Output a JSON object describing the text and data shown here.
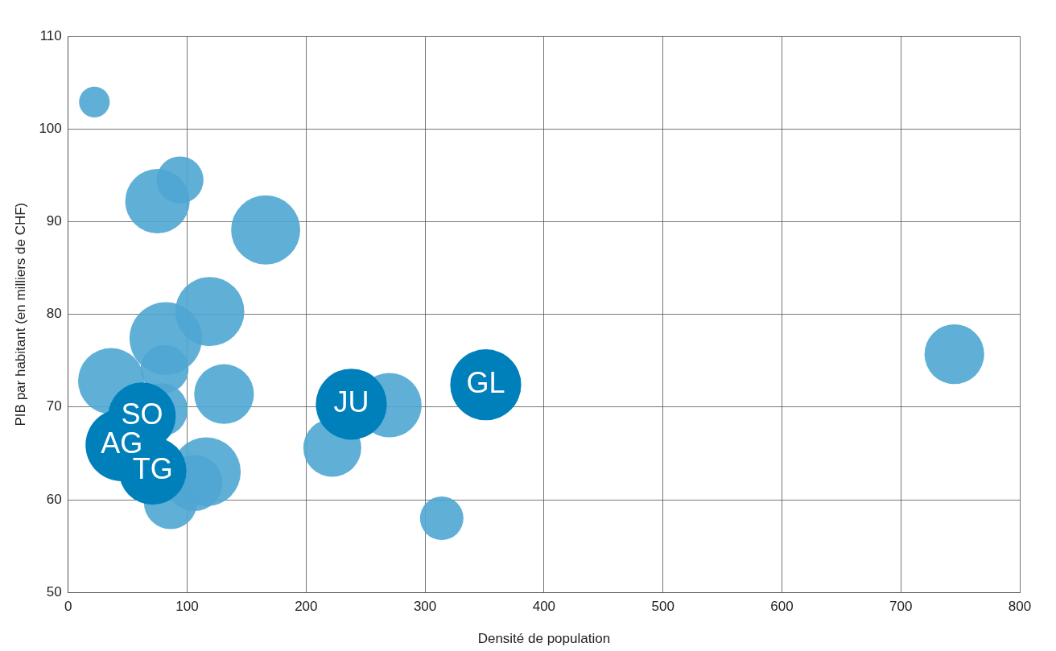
{
  "chart_data": {
    "type": "bubble",
    "xlabel": "Densité de population",
    "ylabel": "PIB par habitant (en milliers de CHF)",
    "xlim": [
      0,
      800
    ],
    "xticks": [
      0,
      100,
      200,
      300,
      400,
      500,
      600,
      700,
      800
    ],
    "ylim": [
      50,
      110
    ],
    "yticks": [
      50,
      60,
      70,
      80,
      90,
      100,
      110
    ],
    "grid": true,
    "legend": false,
    "series": [
      {
        "color": "#4fa6d3",
        "x": [
          22,
          94,
          75,
          166,
          119,
          82,
          81,
          36,
          131,
          78,
          116,
          106,
          86,
          222,
          270,
          314,
          745
        ],
        "values": [
          102.9,
          94.5,
          92.2,
          89.1,
          80.3,
          77.4,
          74.1,
          72.8,
          71.4,
          69.7,
          63.0,
          61.8,
          59.7,
          65.6,
          70.2,
          58.0,
          75.7
        ],
        "sizes": [
          0.18,
          0.42,
          0.79,
          0.91,
          0.91,
          1,
          0.44,
          0.83,
          0.68,
          0.54,
          0.91,
          0.6,
          0.54,
          0.64,
          0.79,
          0.36,
          0.68
        ]
      },
      {
        "color": "#0080bb",
        "x": [
          62,
          45,
          71,
          238,
          351
        ],
        "values": [
          69.0,
          65.9,
          63.1,
          70.3,
          72.4
        ],
        "sizes": [
          0.87,
          1,
          0.87,
          0.96,
          0.96
        ]
      }
    ],
    "annotations": [
      {
        "text": "SO",
        "x": 62,
        "y": 69.0
      },
      {
        "text": "AG",
        "x": 45,
        "y": 65.9
      },
      {
        "text": "TG",
        "x": 71,
        "y": 63.1
      },
      {
        "text": "JU",
        "x": 238,
        "y": 70.3
      },
      {
        "text": "GL",
        "x": 351,
        "y": 72.4
      }
    ]
  }
}
